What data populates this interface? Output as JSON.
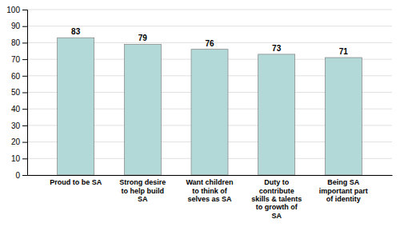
{
  "chart_data": {
    "type": "bar",
    "categories": [
      "Proud to be SA",
      "Strong desire\nto help build\nSA",
      "Want children\nto think of\nselves as SA",
      "Duty to\ncontribute\nskills & talents\nto growth of\nSA",
      "Being SA\nimportant part\nof identity"
    ],
    "values": [
      83,
      79,
      76,
      73,
      71
    ],
    "color": "#b2d8d8",
    "ylim": [
      0,
      100
    ],
    "yticks": [
      0,
      10,
      20,
      30,
      40,
      50,
      60,
      70,
      80,
      90,
      100
    ],
    "grid": true,
    "data_labels": true
  }
}
